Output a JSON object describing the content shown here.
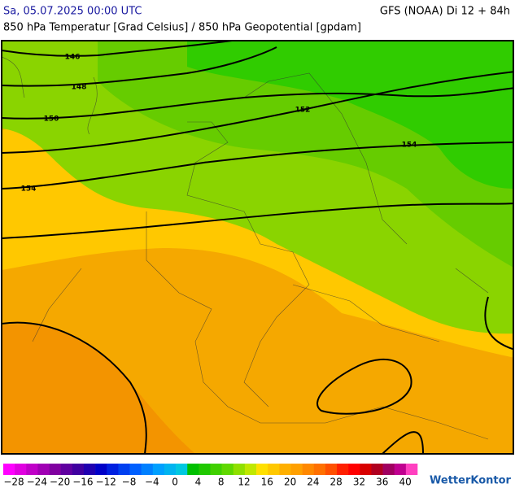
{
  "header": {
    "left": "Sa, 05.07.2025 00:00 UTC",
    "right": "GFS (NOAA) Di 12 + 84h",
    "subtitle": "850 hPa Temperatur [Grad Celsius] / 850 hPa Geopotential [gpdam]"
  },
  "map": {
    "contour_labels": [
      "146",
      "148",
      "150",
      "152",
      "154",
      "154"
    ]
  },
  "colorbar": {
    "labels": [
      "−28",
      "−24",
      "−20",
      "−16",
      "−12",
      "−8",
      "−4",
      "0",
      "4",
      "8",
      "12",
      "16",
      "20",
      "24",
      "28",
      "32",
      "36",
      "40"
    ]
  },
  "logo": "WetterKontor"
}
